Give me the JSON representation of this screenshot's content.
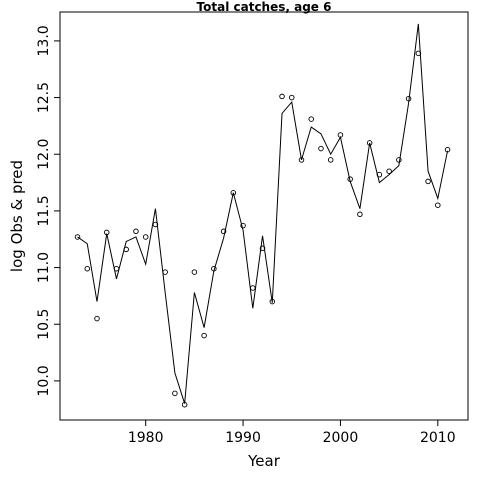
{
  "chart_data": {
    "type": "line",
    "title": "Total catches, age 6",
    "xlabel": "Year",
    "ylabel": "log Obs & pred",
    "xlim": [
      1971.2,
      2013.1
    ],
    "ylim": [
      9.655,
      13.255
    ],
    "x_ticks": [
      1980,
      1990,
      2000,
      2010
    ],
    "y_ticks": [
      10.0,
      10.5,
      11.0,
      11.5,
      12.0,
      12.5,
      13.0
    ],
    "x_tick_labels": [
      "1980",
      "1990",
      "2000",
      "2010"
    ],
    "y_tick_labels": [
      "10.0",
      "10.5",
      "11.0",
      "11.5",
      "12.0",
      "12.5",
      "13.0"
    ],
    "grid": false,
    "legend": "none",
    "series": [
      {
        "role": "predicted",
        "style": "line",
        "x": [
          1973,
          1974,
          1975,
          1976,
          1977,
          1978,
          1979,
          1980,
          1981,
          1982,
          1983,
          1984,
          1985,
          1986,
          1987,
          1988,
          1989,
          1990,
          1991,
          1992,
          1993,
          1994,
          1995,
          1996,
          1997,
          1998,
          1999,
          2000,
          2001,
          2002,
          2003,
          2004,
          2005,
          2006,
          2007,
          2008,
          2009,
          2010,
          2011
        ],
        "y": [
          11.27,
          11.21,
          10.7,
          11.3,
          10.9,
          11.23,
          11.27,
          11.03,
          11.52,
          10.78,
          10.07,
          9.8,
          10.78,
          10.47,
          10.97,
          11.26,
          11.66,
          11.33,
          10.64,
          11.28,
          10.69,
          12.36,
          12.46,
          11.95,
          12.24,
          12.18,
          12.0,
          12.15,
          11.76,
          11.52,
          12.1,
          11.75,
          11.82,
          11.9,
          12.45,
          13.15,
          11.85,
          11.61,
          12.03
        ]
      },
      {
        "role": "observed",
        "style": "points",
        "x": [
          1973,
          1974,
          1975,
          1976,
          1977,
          1978,
          1979,
          1980,
          1981,
          1982,
          1983,
          1984,
          1985,
          1986,
          1987,
          1988,
          1989,
          1990,
          1991,
          1992,
          1993,
          1994,
          1995,
          1996,
          1997,
          1998,
          1999,
          2000,
          2001,
          2002,
          2003,
          2004,
          2005,
          2006,
          2007,
          2008,
          2009,
          2010,
          2011
        ],
        "y": [
          11.27,
          10.99,
          10.55,
          11.31,
          10.99,
          11.16,
          11.32,
          11.27,
          11.38,
          10.96,
          9.89,
          9.79,
          10.96,
          10.4,
          10.99,
          11.32,
          11.66,
          11.37,
          10.82,
          11.17,
          10.7,
          12.51,
          12.5,
          11.95,
          12.31,
          12.05,
          11.95,
          12.17,
          11.78,
          11.47,
          12.1,
          11.82,
          11.85,
          11.95,
          12.49,
          12.89,
          11.76,
          11.55,
          12.04
        ]
      }
    ]
  }
}
